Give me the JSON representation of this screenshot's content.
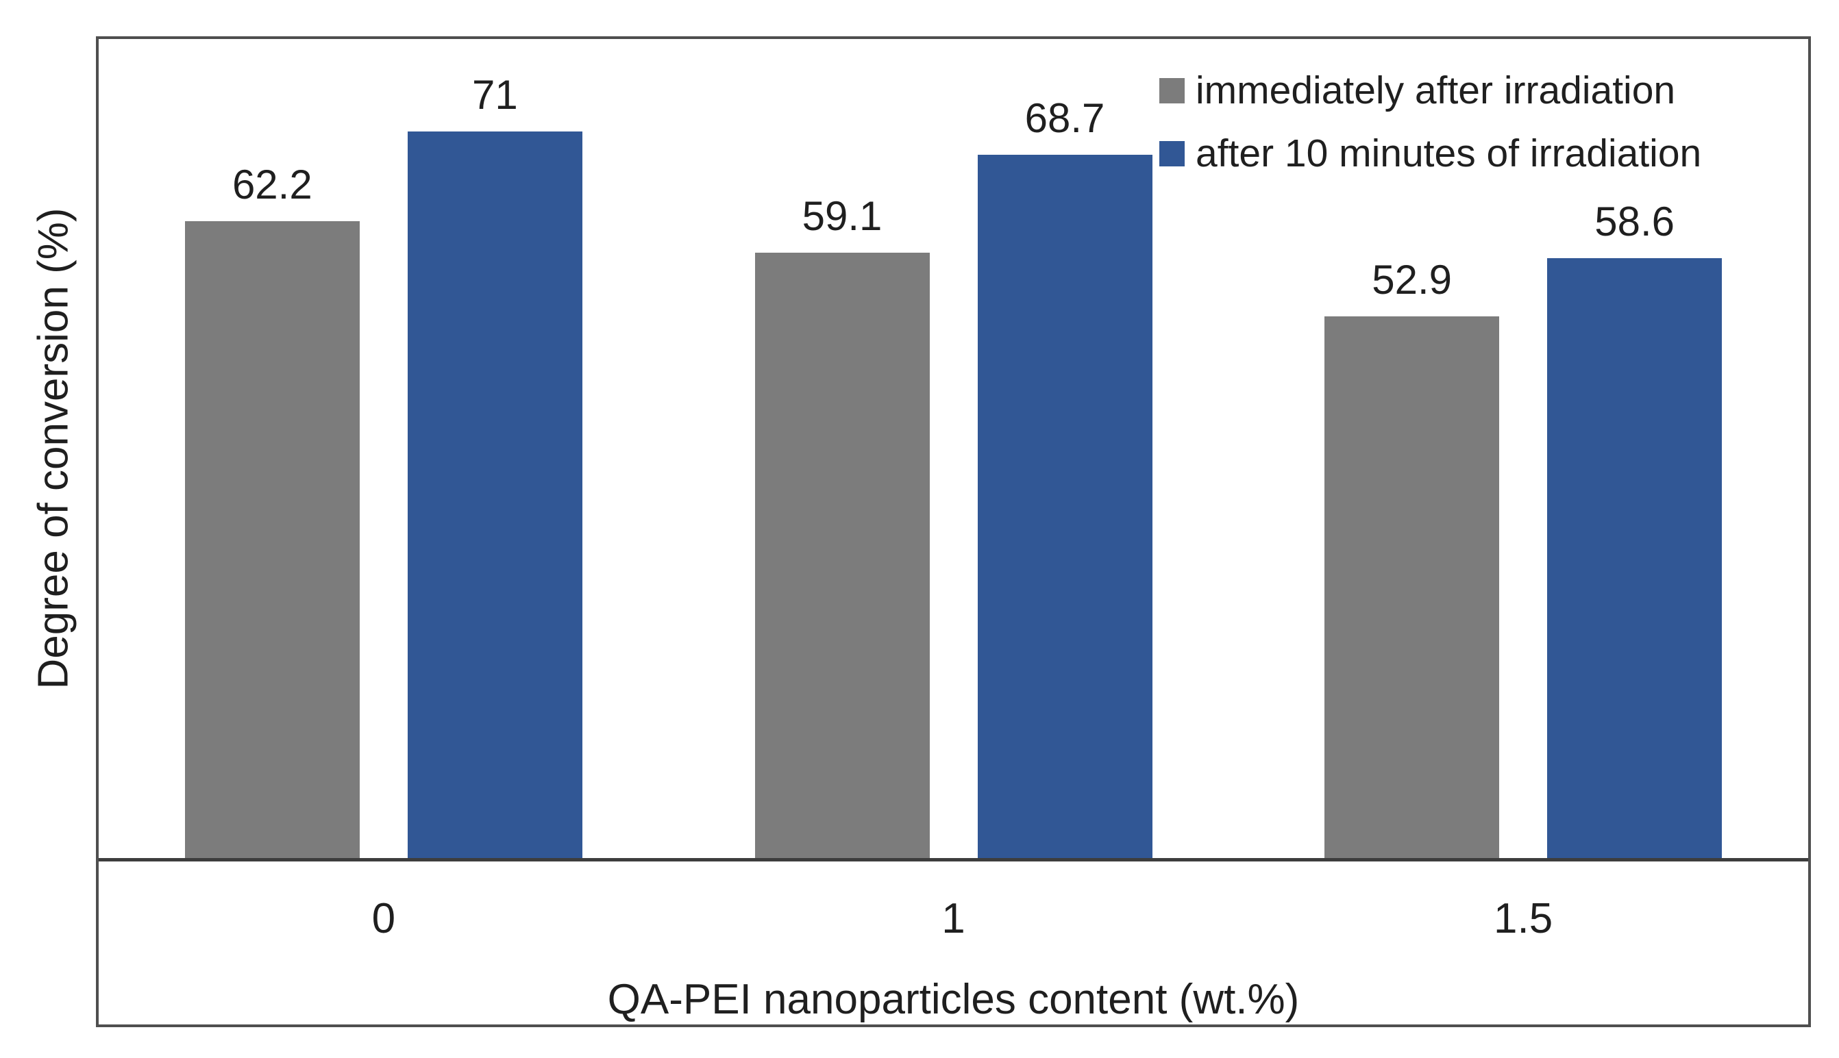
{
  "chart_data": {
    "type": "bar",
    "categories": [
      "0",
      "1",
      "1.5"
    ],
    "series": [
      {
        "name": "immediately after irradiation",
        "color": "#7C7C7C",
        "values": [
          62.2,
          59.1,
          52.9
        ],
        "data_labels": [
          "62.2",
          "59.1",
          "52.9"
        ]
      },
      {
        "name": "after 10 minutes of irradiation",
        "color": "#315795",
        "values": [
          71,
          68.7,
          58.6
        ],
        "data_labels": [
          "71",
          "68.7",
          "58.6"
        ]
      }
    ],
    "xlabel": "QA-PEI nanoparticles content (wt.%)",
    "ylabel": "Degree of conversion (%)",
    "ylim": [
      0,
      80
    ],
    "grid": false,
    "y_tick_labels_visible": false,
    "legend_position": "top-right-inside",
    "data_label_position": "above-bar"
  }
}
